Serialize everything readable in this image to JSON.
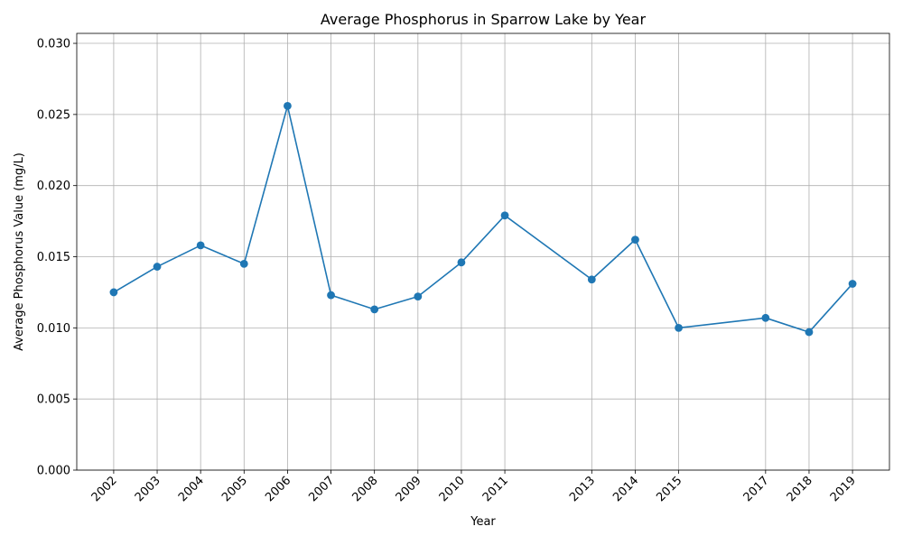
{
  "chart_data": {
    "type": "line",
    "title": "Average Phosphorus in Sparrow Lake by Year",
    "xlabel": "Year",
    "ylabel": "Average Phosphorus Value (mg/L)",
    "x": [
      2002,
      2003,
      2004,
      2005,
      2006,
      2007,
      2008,
      2009,
      2010,
      2011,
      2013,
      2014,
      2015,
      2017,
      2018,
      2019
    ],
    "x_tick_labels": [
      "2002",
      "2003",
      "2004",
      "2005",
      "2006",
      "2007",
      "2008",
      "2009",
      "2010",
      "2011",
      "2013",
      "2014",
      "2015",
      "2017",
      "2018",
      "2019"
    ],
    "series": [
      {
        "values": [
          0.0125,
          0.0143,
          0.0158,
          0.0145,
          0.0256,
          0.0123,
          0.0113,
          0.0122,
          0.0146,
          0.0179,
          0.0134,
          0.0162,
          0.01,
          0.0107,
          0.0097,
          0.0131
        ],
        "color": "#1f77b4",
        "marker": "circle"
      }
    ],
    "xlim": [
      2001.15,
      2019.85
    ],
    "ylim": [
      0,
      0.0307
    ],
    "y_ticks": [
      0.0,
      0.005,
      0.01,
      0.015,
      0.02,
      0.025,
      0.03
    ],
    "y_tick_labels": [
      "0.000",
      "0.005",
      "0.010",
      "0.015",
      "0.020",
      "0.025",
      "0.030"
    ],
    "grid": true,
    "x_tick_rotation": "45-degree"
  }
}
